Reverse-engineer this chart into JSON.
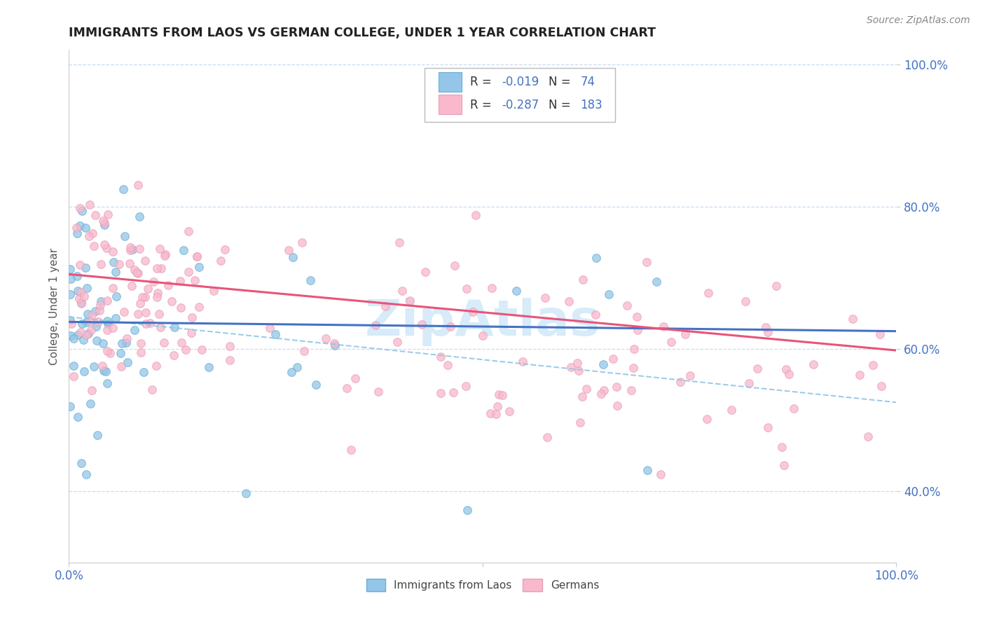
{
  "title": "IMMIGRANTS FROM LAOS VS GERMAN COLLEGE, UNDER 1 YEAR CORRELATION CHART",
  "source": "Source: ZipAtlas.com",
  "ylabel": "College, Under 1 year",
  "legend1_r": "-0.019",
  "legend1_n": "74",
  "legend2_r": "-0.287",
  "legend2_n": "183",
  "legend_entry1": "Immigrants from Laos",
  "legend_entry2": "Germans",
  "scatter_color_blue": "#93C6E8",
  "scatter_edge_blue": "#6BAED6",
  "scatter_color_pink": "#F9B8CC",
  "scatter_edge_pink": "#E8A0B8",
  "line_color_blue": "#4472C4",
  "line_color_pink": "#E8547A",
  "dash_color_blue": "#93C6E8",
  "grid_color": "#C8DCF0",
  "tick_color": "#4472C4",
  "ylabel_color": "#555555",
  "title_color": "#222222",
  "source_color": "#888888",
  "watermark": "ZipAtlas",
  "watermark_color": "#D0E8F8",
  "blue_line_x0": 0.0,
  "blue_line_y0": 0.638,
  "blue_line_x1": 1.0,
  "blue_line_y1": 0.625,
  "pink_line_x0": 0.0,
  "pink_line_y0": 0.705,
  "pink_line_x1": 1.0,
  "pink_line_y1": 0.598,
  "dash_line_x0": 0.0,
  "dash_line_y0": 0.645,
  "dash_line_x1": 1.0,
  "dash_line_y1": 0.525,
  "xlim": [
    0.0,
    1.0
  ],
  "ylim": [
    0.3,
    1.02
  ],
  "yticks": [
    0.4,
    0.6,
    0.8,
    1.0
  ],
  "ytick_labels": [
    "40.0%",
    "60.0%",
    "80.0%",
    "100.0%"
  ],
  "xtick_positions": [
    0.0,
    0.5,
    1.0
  ],
  "xtick_labels": [
    "0.0%",
    "",
    "100.0%"
  ]
}
